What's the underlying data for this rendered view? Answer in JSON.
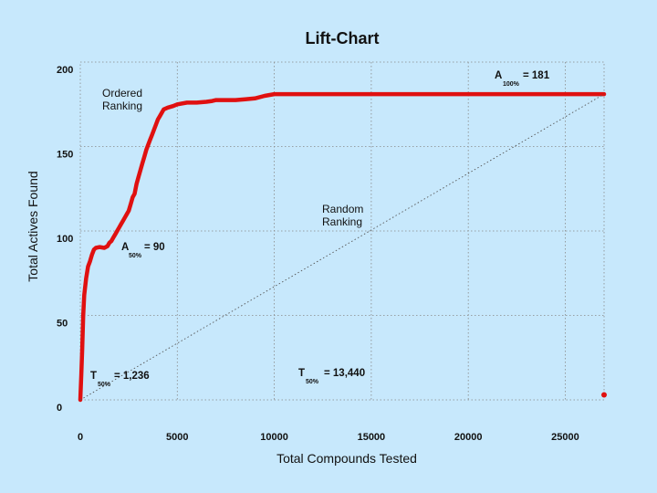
{
  "chart_data": {
    "type": "line",
    "title": "Lift-Chart",
    "xlabel": "Total Compounds Tested",
    "ylabel": "Total Actives Found",
    "xlim": [
      0,
      27000
    ],
    "ylim": [
      0,
      200
    ],
    "x_ticks": [
      "0",
      "5000",
      "10000",
      "15000",
      "20000",
      "25000"
    ],
    "y_ticks": [
      "0",
      "50",
      "100",
      "150",
      "200"
    ],
    "grid": true,
    "series": [
      {
        "name": "Ordered Ranking",
        "color": "#e01010",
        "points": [
          [
            0,
            0
          ],
          [
            50,
            15
          ],
          [
            100,
            30
          ],
          [
            150,
            50
          ],
          [
            200,
            62
          ],
          [
            300,
            72
          ],
          [
            400,
            79
          ],
          [
            500,
            82
          ],
          [
            600,
            86
          ],
          [
            700,
            89
          ],
          [
            800,
            90
          ],
          [
            1000,
            90.5
          ],
          [
            1236,
            90
          ],
          [
            1400,
            91
          ],
          [
            1500,
            93
          ],
          [
            1600,
            94
          ],
          [
            1700,
            96
          ],
          [
            1800,
            98
          ],
          [
            1900,
            100
          ],
          [
            2000,
            102
          ],
          [
            2100,
            104
          ],
          [
            2200,
            106
          ],
          [
            2300,
            108
          ],
          [
            2400,
            110
          ],
          [
            2500,
            112
          ],
          [
            2600,
            116
          ],
          [
            2700,
            120
          ],
          [
            2800,
            122
          ],
          [
            2900,
            128
          ],
          [
            3000,
            132
          ],
          [
            3100,
            136
          ],
          [
            3200,
            140
          ],
          [
            3300,
            144
          ],
          [
            3400,
            148
          ],
          [
            3500,
            151
          ],
          [
            3600,
            154
          ],
          [
            3700,
            157
          ],
          [
            3800,
            160
          ],
          [
            3900,
            163
          ],
          [
            4000,
            166
          ],
          [
            4100,
            168
          ],
          [
            4200,
            170
          ],
          [
            4300,
            172
          ],
          [
            4500,
            173
          ],
          [
            4800,
            174
          ],
          [
            5000,
            175
          ],
          [
            5500,
            176
          ],
          [
            6000,
            176
          ],
          [
            6500,
            176.5
          ],
          [
            6800,
            177
          ],
          [
            7000,
            177.5
          ],
          [
            7500,
            177.5
          ],
          [
            8000,
            177.5
          ],
          [
            8500,
            178
          ],
          [
            9000,
            178.5
          ],
          [
            9500,
            180
          ],
          [
            10000,
            181
          ],
          [
            27000,
            181
          ]
        ]
      },
      {
        "name": "Random Ranking",
        "color": "#555555",
        "points": [
          [
            0,
            0
          ],
          [
            27000,
            181
          ]
        ]
      }
    ],
    "isolated_points": [
      [
        27000,
        3
      ]
    ],
    "annotations": {
      "ordered_label": [
        "Ordered",
        "Ranking"
      ],
      "random_label": [
        "Random",
        "Ranking"
      ],
      "a100": {
        "main": "A",
        "sub": "100%",
        "rest": "= 181"
      },
      "a50": {
        "main": "A",
        "sub": "50%",
        "rest": "= 90"
      },
      "t50_ordered": {
        "main": "T",
        "sub": "50%",
        "rest": "= 1,236"
      },
      "t50_random": {
        "main": "T",
        "sub": "50%",
        "rest": "= 13,440"
      }
    }
  }
}
